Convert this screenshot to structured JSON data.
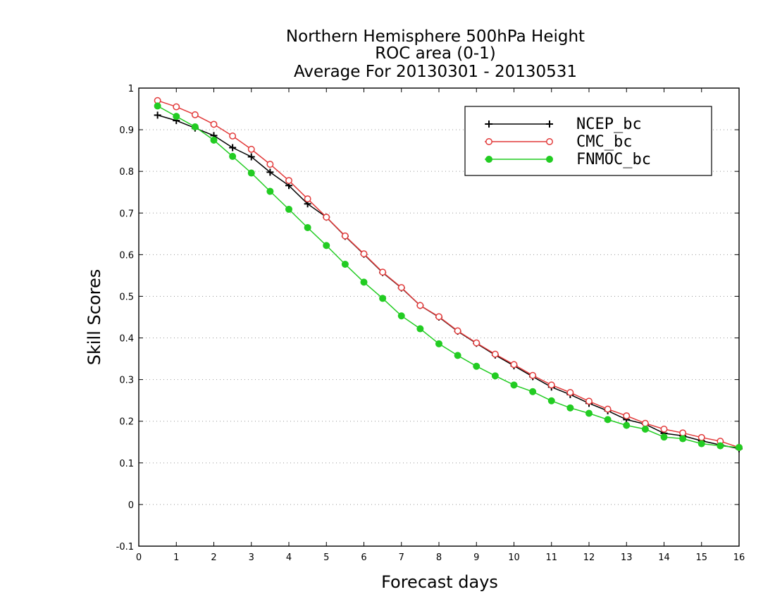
{
  "chart_data": {
    "type": "line",
    "title_lines": [
      "Northern Hemisphere 500hPa Height",
      "ROC area (0-1)",
      "Average For 20130301 - 20130531"
    ],
    "xlabel": "Forecast days",
    "ylabel": "Skill Scores",
    "xlim": [
      0,
      16
    ],
    "ylim": [
      -0.1,
      1
    ],
    "x_ticks": [
      "0",
      "1",
      "2",
      "3",
      "4",
      "5",
      "6",
      "7",
      "8",
      "9",
      "10",
      "11",
      "12",
      "13",
      "14",
      "15",
      "16"
    ],
    "y_ticks": [
      "-0.1",
      "0",
      "0.1",
      "0.2",
      "0.3",
      "0.4",
      "0.5",
      "0.6",
      "0.7",
      "0.8",
      "0.9",
      "1"
    ],
    "grid": "horizontal dotted",
    "legend_position": "top-right",
    "x": [
      0.5,
      1,
      1.5,
      2,
      2.5,
      3,
      3.5,
      4,
      4.5,
      5,
      5.5,
      6,
      6.5,
      7,
      7.5,
      8,
      8.5,
      9,
      9.5,
      10,
      10.5,
      11,
      11.5,
      12,
      12.5,
      13,
      13.5,
      14,
      14.5,
      15,
      15.5,
      16
    ],
    "series": [
      {
        "name": "NCEP_bc",
        "color": "#000000",
        "marker": "plus",
        "values": [
          0.935,
          0.922,
          0.904,
          0.886,
          0.857,
          0.835,
          0.798,
          0.766,
          0.722,
          0.69,
          0.644,
          0.601,
          0.557,
          0.52,
          0.478,
          0.45,
          0.416,
          0.387,
          0.359,
          0.333,
          0.307,
          0.282,
          0.264,
          0.243,
          0.225,
          0.204,
          0.193,
          0.171,
          0.165,
          0.153,
          0.143,
          0.134
        ]
      },
      {
        "name": "CMC_bc",
        "color": "#e23a3a",
        "marker": "open-circle",
        "values": [
          0.97,
          0.955,
          0.936,
          0.913,
          0.885,
          0.853,
          0.817,
          0.778,
          0.734,
          0.69,
          0.645,
          0.602,
          0.558,
          0.521,
          0.478,
          0.451,
          0.417,
          0.388,
          0.361,
          0.336,
          0.31,
          0.287,
          0.269,
          0.248,
          0.229,
          0.213,
          0.195,
          0.181,
          0.172,
          0.161,
          0.152,
          0.137
        ]
      },
      {
        "name": "FNMOC_bc",
        "color": "#22cc22",
        "marker": "filled-circle",
        "values": [
          0.957,
          0.932,
          0.907,
          0.875,
          0.836,
          0.796,
          0.752,
          0.709,
          0.665,
          0.622,
          0.577,
          0.534,
          0.495,
          0.453,
          0.422,
          0.386,
          0.358,
          0.332,
          0.309,
          0.287,
          0.271,
          0.249,
          0.232,
          0.219,
          0.204,
          0.19,
          0.181,
          0.162,
          0.158,
          0.146,
          0.141,
          0.137
        ]
      }
    ]
  }
}
